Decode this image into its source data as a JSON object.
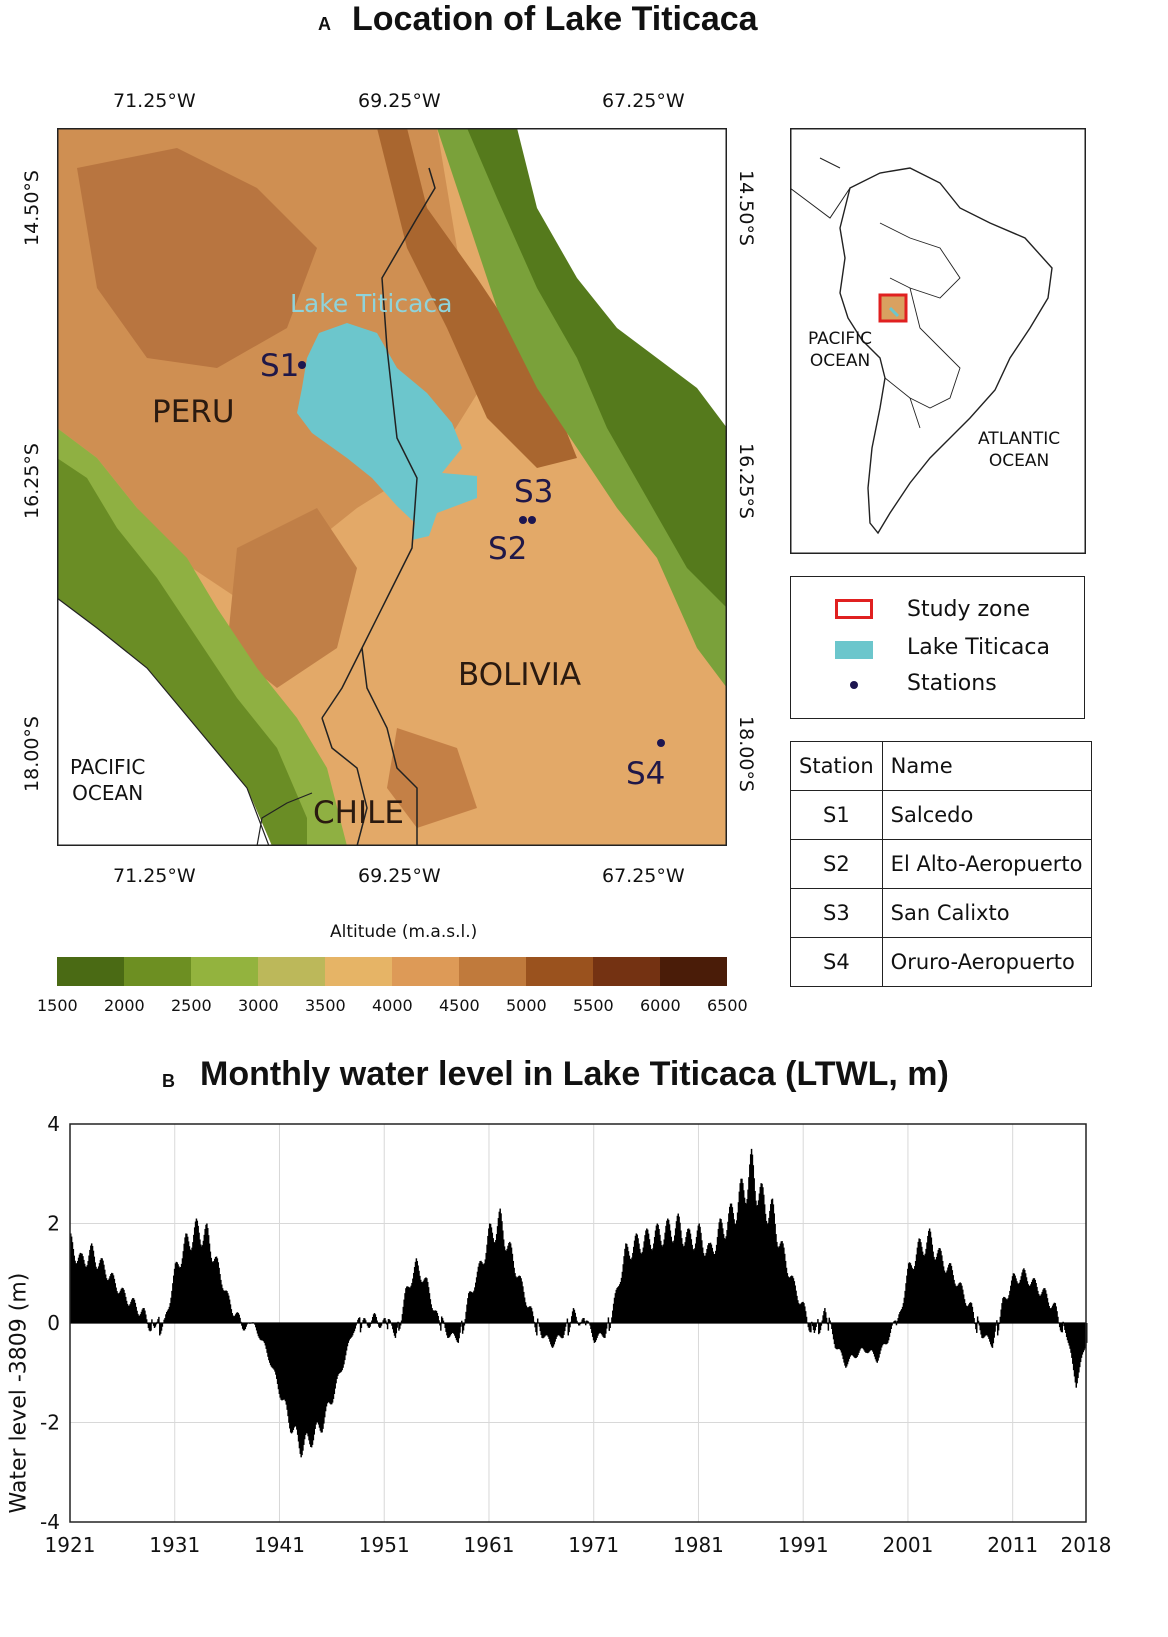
{
  "panel_a": {
    "letter": "A",
    "title": "Location of Lake Titicaca",
    "lon_ticks": [
      "71.25°W",
      "69.25°W",
      "67.25°W"
    ],
    "lat_ticks": [
      "14.50°S",
      "16.25°S",
      "18.00°S"
    ],
    "countries": [
      "PERU",
      "BOLIVIA",
      "CHILE"
    ],
    "ocean_label": "PACIFIC\nOCEAN",
    "lake_label": "Lake Titicaca",
    "stations": [
      {
        "id": "S1",
        "name": "Salcedo"
      },
      {
        "id": "S2",
        "name": "El Alto-Aeropuerto"
      },
      {
        "id": "S3",
        "name": "San Calixto"
      },
      {
        "id": "S4",
        "name": "Oruro-Aeropuerto"
      }
    ],
    "colors": {
      "lake": "#6cc6cc",
      "station": "#1d1650",
      "study_zone": "#e02020"
    }
  },
  "inset": {
    "pacific": "PACIFIC\nOCEAN",
    "atlantic": "ATLANTIC\nOCEAN"
  },
  "legend": {
    "items": [
      "Study zone",
      "Lake Titicaca",
      "Stations"
    ]
  },
  "station_table": {
    "headers": [
      "Station",
      "Name"
    ]
  },
  "colorbar": {
    "label": "Altitude (m.a.s.l.)",
    "ticks": [
      "1500",
      "2000",
      "2500",
      "3000",
      "3500",
      "4000",
      "4500",
      "5000",
      "5500",
      "6000",
      "6500"
    ],
    "colors": [
      "#4a6a14",
      "#6d8f22",
      "#93b33e",
      "#bcb85a",
      "#e6b466",
      "#dd9a57",
      "#c07a3c",
      "#9a521e",
      "#743212",
      "#4a1c08"
    ]
  },
  "panel_b": {
    "letter": "B",
    "title": "Monthly water level in Lake Titicaca (LTWL, m)"
  },
  "chart_data": {
    "type": "bar",
    "title": "Monthly water level in Lake Titicaca (LTWL, m)",
    "ylabel": "Water level -3809 (m)",
    "xlabel": "",
    "xlim": [
      1921,
      2018
    ],
    "ylim": [
      -4,
      4
    ],
    "xticks": [
      "1921",
      "1931",
      "1941",
      "1951",
      "1961",
      "1971",
      "1981",
      "1991",
      "2001",
      "2011",
      "2018"
    ],
    "yticks": [
      "4",
      "2",
      "0",
      "-2",
      "-4"
    ],
    "grid": true,
    "color": "#000000",
    "x": [
      1921,
      1922,
      1923,
      1924,
      1925,
      1926,
      1927,
      1928,
      1929,
      1930,
      1931,
      1932,
      1933,
      1934,
      1935,
      1936,
      1937,
      1938,
      1939,
      1940,
      1941,
      1942,
      1943,
      1944,
      1945,
      1946,
      1947,
      1948,
      1949,
      1950,
      1951,
      1952,
      1953,
      1954,
      1955,
      1956,
      1957,
      1958,
      1959,
      1960,
      1961,
      1962,
      1963,
      1964,
      1965,
      1966,
      1967,
      1968,
      1969,
      1970,
      1971,
      1972,
      1973,
      1974,
      1975,
      1976,
      1977,
      1978,
      1979,
      1980,
      1981,
      1982,
      1983,
      1984,
      1985,
      1986,
      1987,
      1988,
      1989,
      1990,
      1991,
      1992,
      1993,
      1994,
      1995,
      1996,
      1997,
      1998,
      1999,
      2000,
      2001,
      2002,
      2003,
      2004,
      2005,
      2006,
      2007,
      2008,
      2009,
      2010,
      2011,
      2012,
      2013,
      2014,
      2015,
      2016,
      2017,
      2018
    ],
    "peak_values": [
      1.8,
      1.4,
      1.6,
      1.3,
      1.0,
      0.7,
      0.5,
      0.3,
      -0.1,
      0.1,
      1.2,
      1.8,
      2.1,
      2.0,
      1.3,
      0.6,
      0.2,
      0,
      -0.3,
      -0.8,
      -1.5,
      -2.2,
      -2.7,
      -2.5,
      -2.2,
      -1.6,
      -0.9,
      -0.2,
      0.1,
      0.2,
      0.1,
      -0.3,
      0.7,
      1.3,
      0.9,
      0.2,
      -0.3,
      -0.4,
      0.6,
      1.2,
      2.0,
      2.3,
      1.6,
      0.9,
      0.3,
      -0.3,
      -0.5,
      -0.3,
      0.3,
      0.1,
      -0.4,
      -0.3,
      0.6,
      1.6,
      1.8,
      1.9,
      2.0,
      2.1,
      2.2,
      1.9,
      2.0,
      1.6,
      2.1,
      2.4,
      2.9,
      3.5,
      2.8,
      2.5,
      1.6,
      0.9,
      0.4,
      -0.2,
      0.3,
      -0.5,
      -0.9,
      -0.7,
      -0.6,
      -0.8,
      -0.4,
      0.1,
      1.2,
      1.7,
      1.9,
      1.5,
      1.2,
      0.8,
      0.4,
      -0.3,
      -0.5,
      0.5,
      1.0,
      1.1,
      0.9,
      0.7,
      0.4,
      -0.2,
      -1.3,
      -0.4
    ]
  }
}
